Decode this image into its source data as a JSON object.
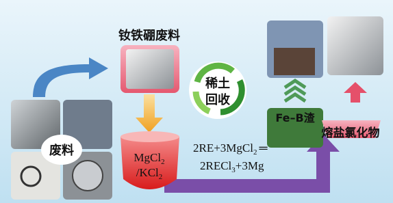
{
  "scrap_title": "钕铁硼废料",
  "recycle_label": {
    "line1": "稀土",
    "line2": "回收"
  },
  "waste_label": "废料",
  "crucible_label": {
    "line1": [
      "MgCl",
      "2"
    ],
    "line2": [
      "/KCl",
      "2"
    ]
  },
  "reaction": {
    "line1": [
      "2RE+3MgCl",
      "2",
      "═"
    ],
    "line2": [
      "2RECl",
      "3",
      "+3Mg"
    ]
  },
  "slag_label": "Fe–B渣",
  "salt_label": "熔盐氯化物"
}
